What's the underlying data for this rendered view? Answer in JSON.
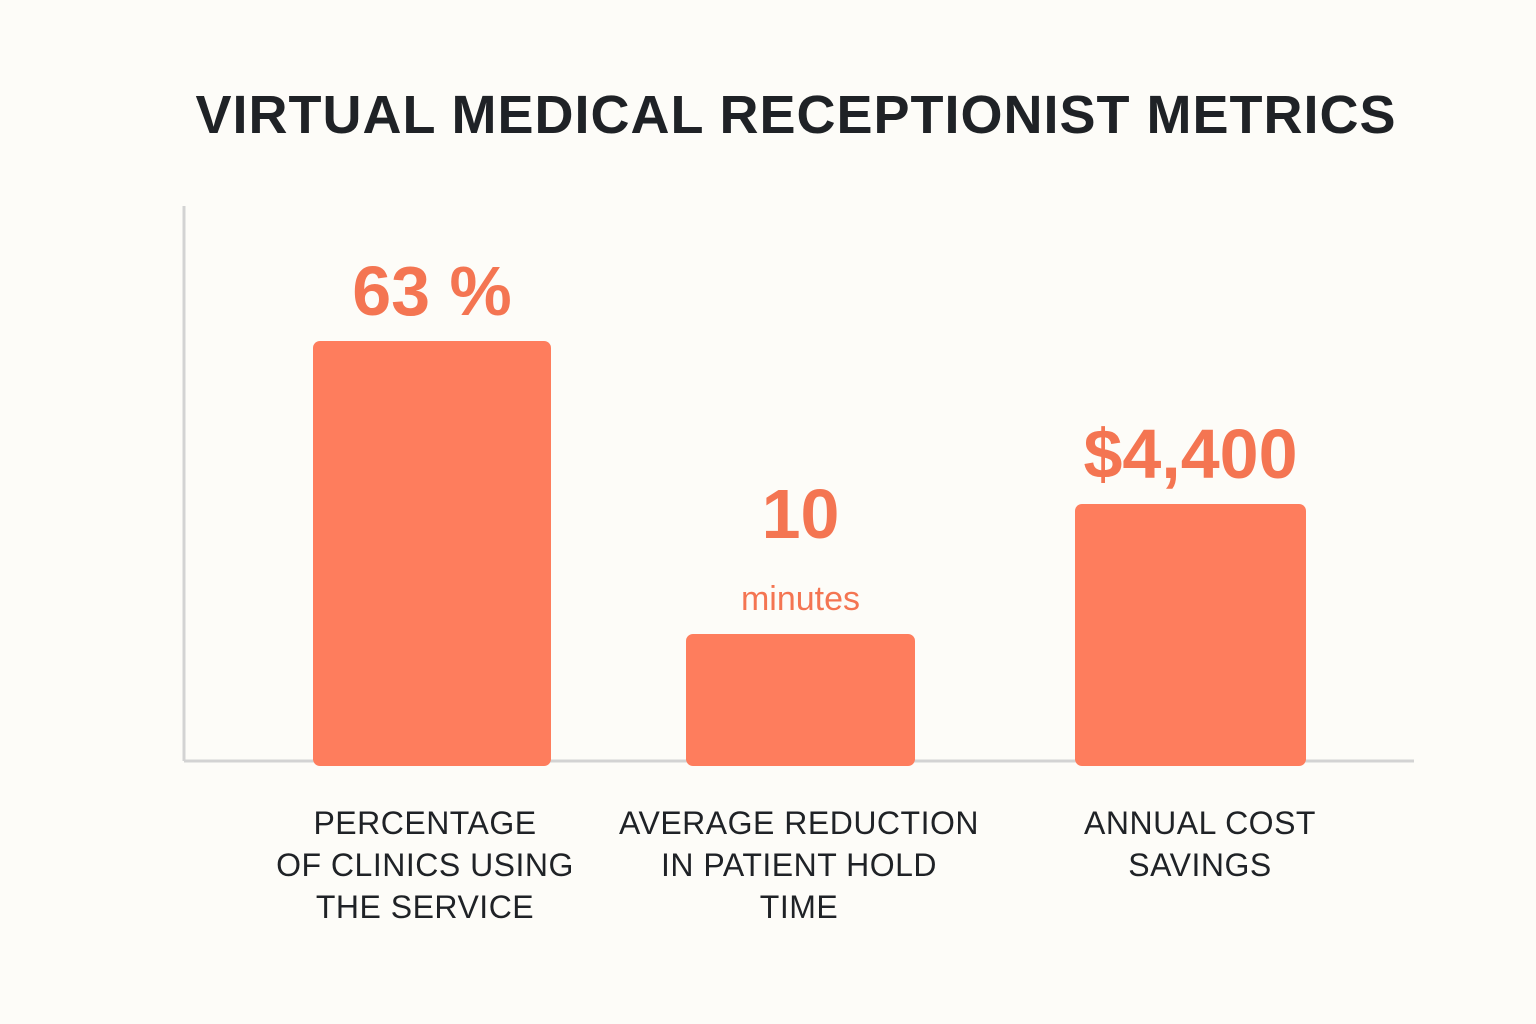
{
  "title": "VIRTUAL MEDICAL RECEPTIONIST METRICS",
  "colors": {
    "bar": "#fe7d5d",
    "value_text": "#f47552",
    "axis": "#d3d3d3",
    "text": "#1f2226",
    "background": "#fdfcf8"
  },
  "chart_data": {
    "type": "bar",
    "title": "VIRTUAL MEDICAL RECEPTIONIST METRICS",
    "xlabel": "",
    "ylabel": "",
    "grid": false,
    "categories": [
      "PERCENTAGE\nOF CLINICS USING\nTHE SERVICE",
      "AVERAGE REDUCTION\nIN PATIENT HOLD\nTIME",
      "ANNUAL COST\nSAVINGS"
    ],
    "value_labels": [
      "63 %",
      "10",
      "$4,400"
    ],
    "value_units": [
      "",
      "minutes",
      ""
    ],
    "relative_heights": [
      1.0,
      0.3,
      0.61
    ]
  }
}
